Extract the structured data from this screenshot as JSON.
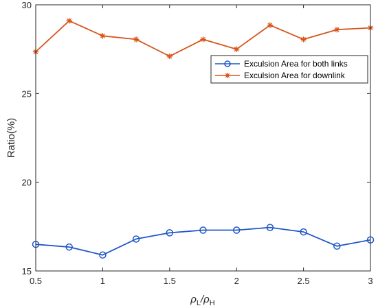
{
  "chart_data": {
    "type": "line",
    "title": "",
    "xlabel": "ρL/ρH",
    "ylabel": "Ratio(%)",
    "x": [
      0.5,
      0.75,
      1,
      1.25,
      1.5,
      1.75,
      2,
      2.25,
      2.5,
      2.75,
      3
    ],
    "xlim": [
      0.5,
      3
    ],
    "ylim": [
      15,
      30
    ],
    "xticks": [
      "0.5",
      "1",
      "1.5",
      "2",
      "2.5",
      "3"
    ],
    "yticks": [
      "15",
      "20",
      "25",
      "30"
    ],
    "grid": false,
    "legend_position": "top-right",
    "series": [
      {
        "name": "Exculsion Area for both links",
        "color": "#1f56c8",
        "marker": "circle",
        "values": [
          16.5,
          16.35,
          15.9,
          16.8,
          17.15,
          17.3,
          17.3,
          17.45,
          17.2,
          16.4,
          16.75
        ]
      },
      {
        "name": "Exculsion Area for downlink",
        "color": "#d95319",
        "marker": "asterisk",
        "values": [
          27.35,
          29.1,
          28.25,
          28.05,
          27.1,
          28.05,
          27.5,
          28.85,
          28.05,
          28.6,
          28.7
        ]
      }
    ]
  }
}
